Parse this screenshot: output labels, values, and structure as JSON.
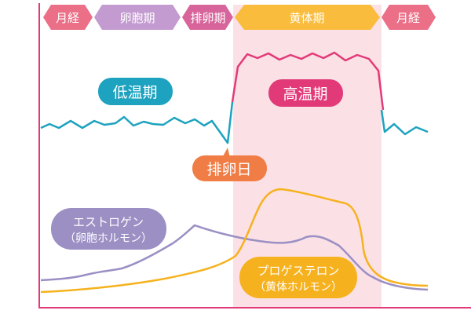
{
  "phases": {
    "menses_start": "月経",
    "follicular": "卵胞期",
    "ovulatory": "排卵期",
    "luteal": "黄体期",
    "menses_end": "月経"
  },
  "labels": {
    "low_temp": "低温期",
    "high_temp": "高温期",
    "ovulation_day": "排卵日",
    "estrogen_line1": "エストロゲン",
    "estrogen_line2": "（卵胞ホルモン）",
    "progesterone_line1": "プロゲステロン",
    "progesterone_line2": "（黄体ホルモン）"
  },
  "colors": {
    "menses": "#ea6f87",
    "follicular": "#c39bd0",
    "ovulatory": "#d7659b",
    "luteal": "#f9bc3d",
    "luteal_band": "#fbe1e6",
    "low_temp_line": "#1da2bf",
    "high_temp_line": "#e23a78",
    "ovulation_badge": "#f07d45",
    "estrogen": "#9b8fc4",
    "progesterone": "#f6b21e",
    "axis": "#e23a78"
  }
}
